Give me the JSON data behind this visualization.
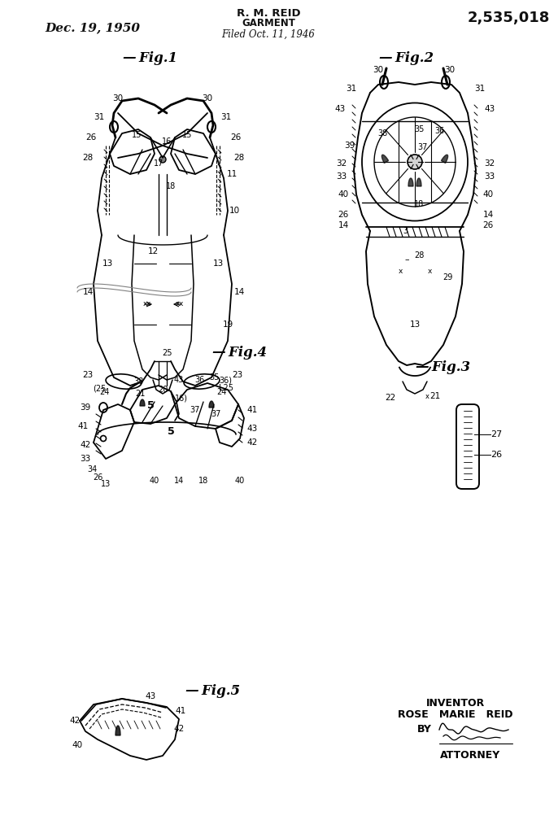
{
  "title_left": "Dec. 19, 1950",
  "title_center_line1": "R. M. REID",
  "title_center_line2": "GARMENT",
  "title_center_line3": "Filed Oct. 11, 1946",
  "title_right": "2,535,018",
  "inventor_text": "INVENTOR",
  "inventor_name": "ROSE   MARIE   REID",
  "by_text": "BY",
  "attorney_text": "ATTORNEY",
  "bg_color": "#ffffff",
  "line_color": "#111111"
}
